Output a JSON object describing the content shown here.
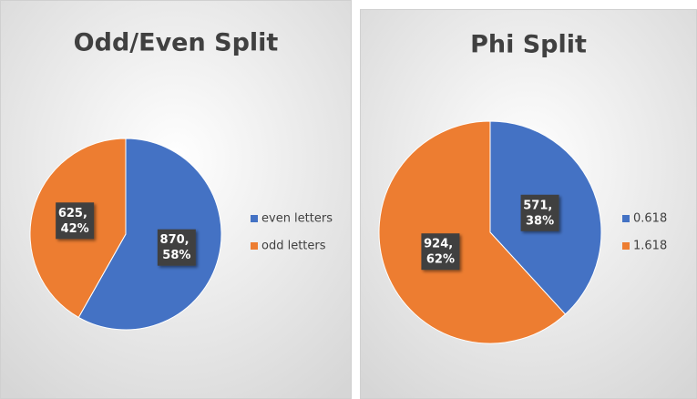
{
  "chart_data": [
    {
      "type": "pie",
      "title": "Odd/Even Split",
      "categories": [
        "even letters",
        "odd letters"
      ],
      "values": [
        870,
        625
      ],
      "value_labels": [
        "870, 58%",
        "625, 42%"
      ],
      "colors": [
        "#4472c4",
        "#ed7d31"
      ],
      "legend": "right"
    },
    {
      "type": "pie",
      "title": "Phi Split",
      "categories": [
        "0.618",
        "1.618"
      ],
      "values": [
        571,
        924
      ],
      "value_labels": [
        "571, 38%",
        "924, 62%"
      ],
      "colors": [
        "#4472c4",
        "#ed7d31"
      ],
      "legend": "right"
    }
  ]
}
